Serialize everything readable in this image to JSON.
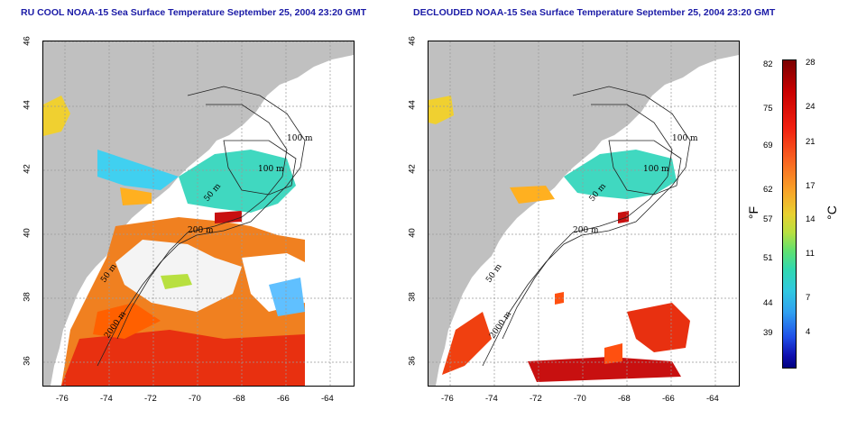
{
  "left_panel": {
    "title": "RU COOL NOAA-15 Sea Surface Temperature September 25, 2004 23:20 GMT",
    "contour_labels": [
      "100 m",
      "100 m",
      "50 m",
      "200 m",
      "50 m",
      "2000 m"
    ]
  },
  "right_panel": {
    "title": "DECLOUDED NOAA-15 Sea Surface Temperature September 25, 2004 23:20 GMT",
    "contour_labels": [
      "100 m",
      "100 m",
      "50 m",
      "200 m",
      "50 m",
      "2000 m"
    ]
  },
  "axes": {
    "x_ticks": [
      "-76",
      "-74",
      "-72",
      "-70",
      "-68",
      "-66",
      "-64"
    ],
    "y_ticks": [
      "46",
      "44",
      "42",
      "40",
      "38",
      "36"
    ]
  },
  "colorbar": {
    "fahrenheit_unit": "°F",
    "celsius_unit": "°C",
    "fahrenheit_ticks": [
      "82",
      "75",
      "69",
      "62",
      "57",
      "51",
      "44",
      "39"
    ],
    "celsius_ticks": [
      "28",
      "24",
      "21",
      "17",
      "14",
      "11",
      "7",
      "4"
    ]
  },
  "colors": {
    "title": "#1a1aa6",
    "land": "#c0c0c0",
    "water_bg": "#ffffff",
    "grid": "#999999"
  }
}
